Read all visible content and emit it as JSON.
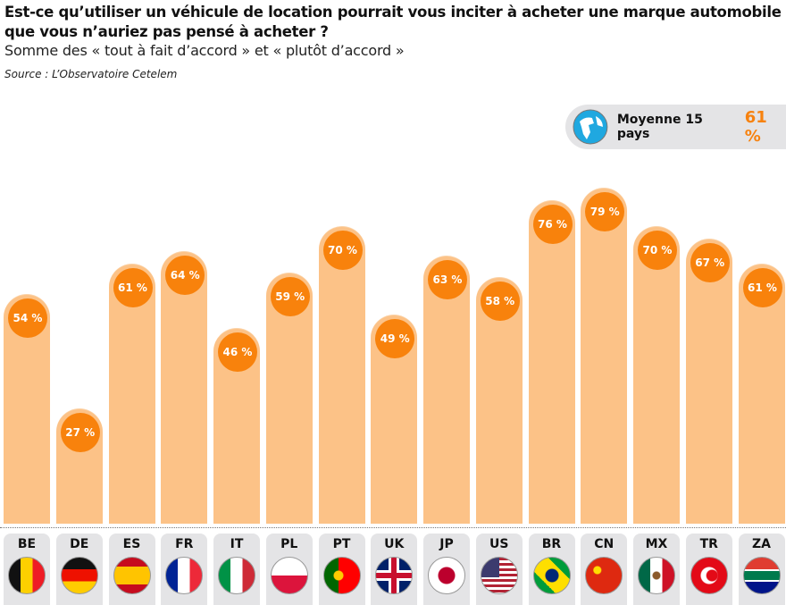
{
  "title": "Est-ce qu’utiliser un véhicule de location pourrait vous inciter à acheter une marque automobile que vous n’auriez pas pensé à acheter ?",
  "subtitle": "Somme des « tout à fait d’accord » et « plutôt d’accord »",
  "source": "Source : L’Observatoire Cetelem",
  "average": {
    "label": "Moyenne 15 pays",
    "value": "61 %",
    "icon": "globe-icon"
  },
  "chart_data": {
    "type": "bar",
    "title": "Est-ce qu’utiliser un véhicule de location pourrait vous inciter à acheter une marque automobile que vous n’auriez pas pensé à acheter ?",
    "categories": [
      "BE",
      "DE",
      "ES",
      "FR",
      "IT",
      "PL",
      "PT",
      "UK",
      "JP",
      "US",
      "BR",
      "CN",
      "MX",
      "TR",
      "ZA"
    ],
    "values": [
      54,
      27,
      61,
      64,
      46,
      59,
      70,
      49,
      63,
      58,
      76,
      79,
      70,
      67,
      61
    ],
    "labels": [
      "54 %",
      "27 %",
      "61 %",
      "64 %",
      "46 %",
      "59 %",
      "70 %",
      "49 %",
      "63 %",
      "58 %",
      "76 %",
      "79 %",
      "70 %",
      "67 %",
      "61 %"
    ],
    "unit": "%",
    "ylim": [
      0,
      100
    ],
    "grid": false,
    "colors": {
      "bar": "#fcc287",
      "bubble": "#f8820c"
    }
  }
}
